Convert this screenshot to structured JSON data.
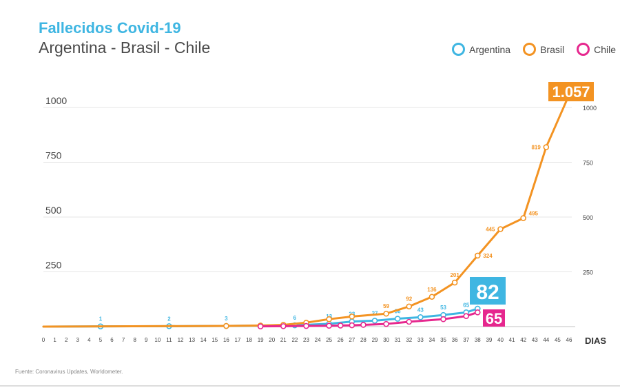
{
  "chart_data": {
    "type": "line",
    "title": "Fallecidos Covid-19",
    "subtitle": "Argentina - Brasil - Chile",
    "xlabel": "DIAS",
    "ylabel": "",
    "xlim": [
      0,
      46
    ],
    "ylim": [
      0,
      1000
    ],
    "x_ticks": [
      0,
      1,
      2,
      3,
      4,
      5,
      6,
      7,
      8,
      9,
      10,
      11,
      12,
      13,
      14,
      15,
      16,
      17,
      18,
      19,
      20,
      21,
      22,
      23,
      24,
      25,
      26,
      27,
      28,
      29,
      30,
      31,
      32,
      33,
      34,
      35,
      36,
      37,
      38,
      39,
      40,
      41,
      42,
      43,
      44,
      45,
      46
    ],
    "y_ticks_left": [
      {
        "v": 1000,
        "label": "1000"
      },
      {
        "v": 750,
        "label": "750"
      },
      {
        "v": 500,
        "label": "500"
      },
      {
        "v": 250,
        "label": "250"
      }
    ],
    "y_ticks_right": [
      {
        "v": 1000,
        "label": "1000"
      },
      {
        "v": 750,
        "label": "750"
      },
      {
        "v": 500,
        "label": "500"
      },
      {
        "v": 250,
        "label": "250"
      }
    ],
    "grid": true,
    "legend_position": "top-right",
    "series": [
      {
        "name": "Argentina",
        "color": "#3fb6e2",
        "points": [
          [
            0,
            0
          ],
          [
            5,
            1
          ],
          [
            11,
            2
          ],
          [
            16,
            3
          ],
          [
            22,
            6
          ],
          [
            25,
            13
          ],
          [
            27,
            23
          ],
          [
            29,
            27
          ],
          [
            31,
            36
          ],
          [
            33,
            43
          ],
          [
            35,
            53
          ],
          [
            37,
            65
          ],
          [
            38,
            82
          ]
        ],
        "labels": [
          [
            5,
            "1"
          ],
          [
            11,
            "2"
          ],
          [
            16,
            "3"
          ],
          [
            22,
            "6"
          ],
          [
            25,
            "13"
          ],
          [
            27,
            "23"
          ],
          [
            29,
            "27"
          ],
          [
            31,
            "36"
          ],
          [
            33,
            "43"
          ],
          [
            35,
            "53"
          ],
          [
            37,
            "65"
          ]
        ],
        "final_label": "82"
      },
      {
        "name": "Brasil",
        "color": "#f39322",
        "points": [
          [
            0,
            0
          ],
          [
            16,
            3
          ],
          [
            19,
            5
          ],
          [
            21,
            8
          ],
          [
            23,
            18
          ],
          [
            25,
            34
          ],
          [
            27,
            46
          ],
          [
            30,
            59
          ],
          [
            32,
            92
          ],
          [
            34,
            136
          ],
          [
            36,
            201
          ],
          [
            38,
            324
          ],
          [
            40,
            445
          ],
          [
            42,
            495
          ],
          [
            44,
            819
          ],
          [
            46,
            1057
          ]
        ],
        "labels": [
          [
            30,
            "59"
          ],
          [
            32,
            "92"
          ],
          [
            34,
            "136"
          ],
          [
            36,
            "201"
          ],
          [
            38,
            "324"
          ],
          [
            40,
            "445"
          ],
          [
            42,
            "495"
          ],
          [
            44,
            "819"
          ]
        ],
        "final_label": "1.057"
      },
      {
        "name": "Chile",
        "color": "#e6278e",
        "points": [
          [
            19,
            1
          ],
          [
            21,
            2
          ],
          [
            23,
            3
          ],
          [
            25,
            4
          ],
          [
            26,
            5
          ],
          [
            27,
            6
          ],
          [
            28,
            8
          ],
          [
            30,
            12
          ],
          [
            32,
            22
          ],
          [
            35,
            34
          ],
          [
            37,
            48
          ],
          [
            38,
            65
          ]
        ],
        "labels": [],
        "final_label": "65"
      }
    ]
  },
  "legend": [
    {
      "label": "Argentina",
      "color": "#3fb6e2"
    },
    {
      "label": "Brasil",
      "color": "#f39322"
    },
    {
      "label": "Chile",
      "color": "#e6278e"
    }
  ],
  "source": "Fuente: Coronavirus Updates, Worldometer."
}
